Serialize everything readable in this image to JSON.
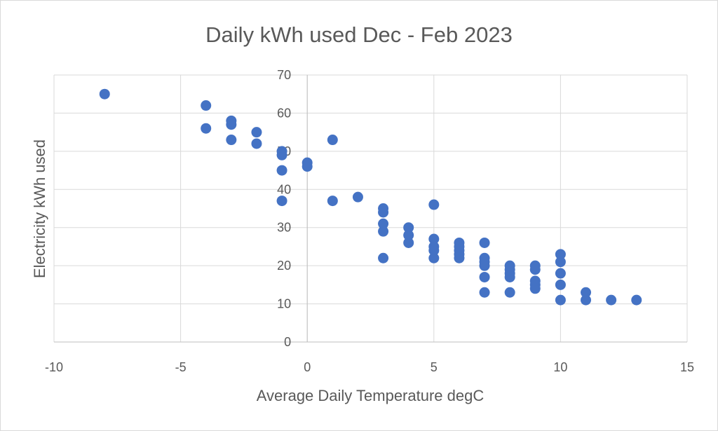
{
  "chart_data": {
    "type": "scatter",
    "title": "Daily kWh used Dec - Feb 2023",
    "xlabel": "Average Daily Temperature degC",
    "ylabel": "Electricity kWh used",
    "xlim": [
      -10,
      15
    ],
    "ylim": [
      0,
      70
    ],
    "x_ticks": [
      -10,
      -5,
      0,
      5,
      10,
      15
    ],
    "y_ticks": [
      0,
      10,
      20,
      30,
      40,
      50,
      60,
      70
    ],
    "grid": true,
    "legend": "none",
    "marker_color": "#4472c4",
    "points": [
      {
        "x": -8,
        "y": 65
      },
      {
        "x": -4,
        "y": 62
      },
      {
        "x": -4,
        "y": 56
      },
      {
        "x": -3,
        "y": 58
      },
      {
        "x": -3,
        "y": 57
      },
      {
        "x": -3,
        "y": 53
      },
      {
        "x": -2,
        "y": 55
      },
      {
        "x": -2,
        "y": 52
      },
      {
        "x": -1,
        "y": 50
      },
      {
        "x": -1,
        "y": 49
      },
      {
        "x": -1,
        "y": 45
      },
      {
        "x": -1,
        "y": 37
      },
      {
        "x": 0,
        "y": 47
      },
      {
        "x": 0,
        "y": 46
      },
      {
        "x": 1,
        "y": 53
      },
      {
        "x": 1,
        "y": 37
      },
      {
        "x": 2,
        "y": 38
      },
      {
        "x": 3,
        "y": 35
      },
      {
        "x": 3,
        "y": 34
      },
      {
        "x": 3,
        "y": 31
      },
      {
        "x": 3,
        "y": 29
      },
      {
        "x": 3,
        "y": 22
      },
      {
        "x": 4,
        "y": 30
      },
      {
        "x": 4,
        "y": 28
      },
      {
        "x": 4,
        "y": 26
      },
      {
        "x": 5,
        "y": 36
      },
      {
        "x": 5,
        "y": 27
      },
      {
        "x": 5,
        "y": 25
      },
      {
        "x": 5,
        "y": 24
      },
      {
        "x": 5,
        "y": 22
      },
      {
        "x": 6,
        "y": 26
      },
      {
        "x": 6,
        "y": 25
      },
      {
        "x": 6,
        "y": 24
      },
      {
        "x": 6,
        "y": 23
      },
      {
        "x": 6,
        "y": 22
      },
      {
        "x": 7,
        "y": 26
      },
      {
        "x": 7,
        "y": 22
      },
      {
        "x": 7,
        "y": 21
      },
      {
        "x": 7,
        "y": 20
      },
      {
        "x": 7,
        "y": 17
      },
      {
        "x": 7,
        "y": 13
      },
      {
        "x": 8,
        "y": 20
      },
      {
        "x": 8,
        "y": 19
      },
      {
        "x": 8,
        "y": 18
      },
      {
        "x": 8,
        "y": 17
      },
      {
        "x": 8,
        "y": 13
      },
      {
        "x": 9,
        "y": 20
      },
      {
        "x": 9,
        "y": 19
      },
      {
        "x": 9,
        "y": 16
      },
      {
        "x": 9,
        "y": 15
      },
      {
        "x": 9,
        "y": 14
      },
      {
        "x": 10,
        "y": 23
      },
      {
        "x": 10,
        "y": 21
      },
      {
        "x": 10,
        "y": 18
      },
      {
        "x": 10,
        "y": 15
      },
      {
        "x": 10,
        "y": 11
      },
      {
        "x": 11,
        "y": 13
      },
      {
        "x": 11,
        "y": 11
      },
      {
        "x": 12,
        "y": 11
      },
      {
        "x": 13,
        "y": 11
      }
    ]
  }
}
